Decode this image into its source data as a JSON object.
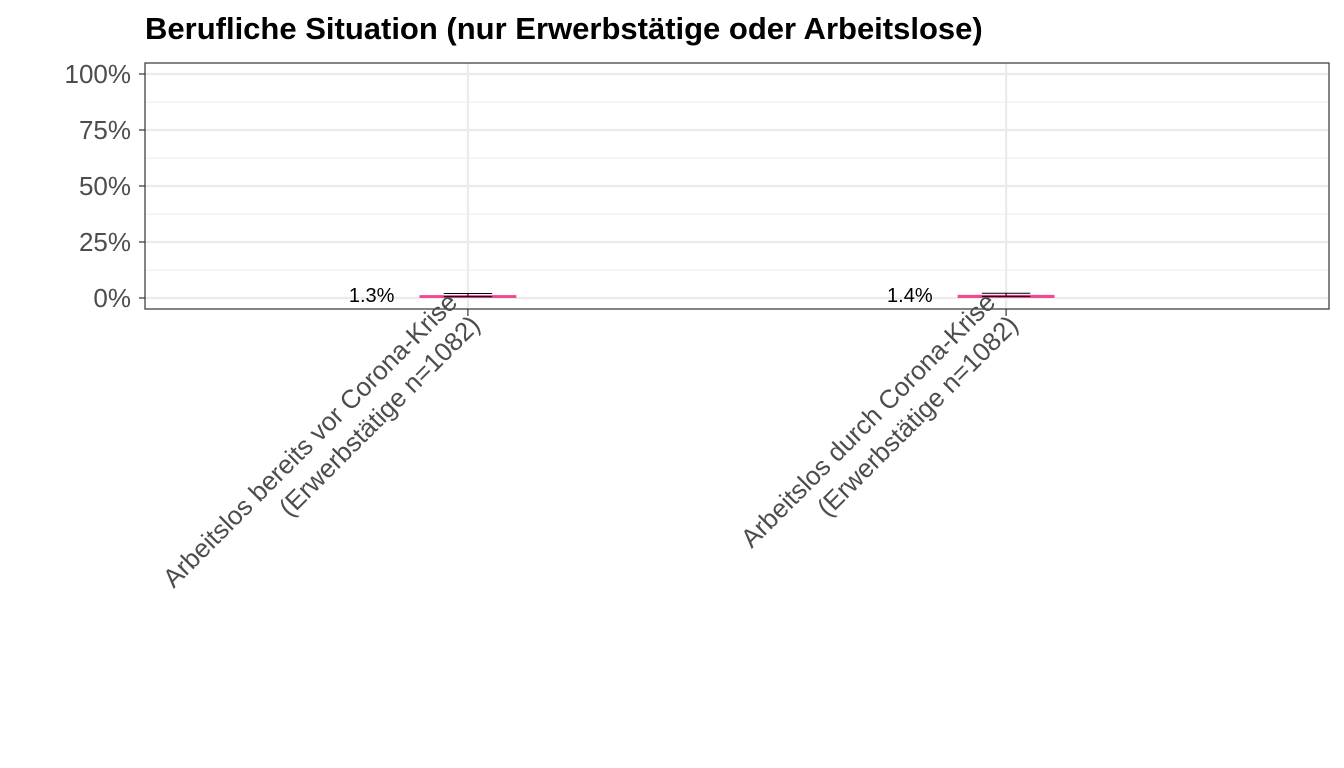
{
  "chart_data": {
    "type": "bar",
    "title": "Berufliche Situation (nur Erwerbstätige oder Arbeitslose)",
    "xlabel": "",
    "ylabel": "",
    "ylim": [
      0,
      1
    ],
    "y_ticks": [
      0,
      0.25,
      0.5,
      0.75,
      1.0
    ],
    "y_tick_labels": [
      "0%",
      "25%",
      "50%",
      "75%",
      "100%"
    ],
    "grid": true,
    "legend": "none",
    "categories": [
      [
        "Arbeitslos bereits vor Corona-Krise",
        "(Erwerbstätige n=1082)"
      ],
      [
        "Arbeitslos durch Corona-Krise",
        "(Erwerbstätige n=1082)"
      ]
    ],
    "values": [
      0.013,
      0.014
    ],
    "error_bars": [
      {
        "low": 0.006,
        "high": 0.02
      },
      {
        "low": 0.007,
        "high": 0.021
      }
    ],
    "data_labels": [
      "1.3%",
      "1.4%"
    ],
    "colors": {
      "bar": "#ee4a96",
      "errorbar": "#000000",
      "grid": "#ebebeb",
      "panel_border": "#333333",
      "axis_text": "#4d4d4d"
    }
  }
}
